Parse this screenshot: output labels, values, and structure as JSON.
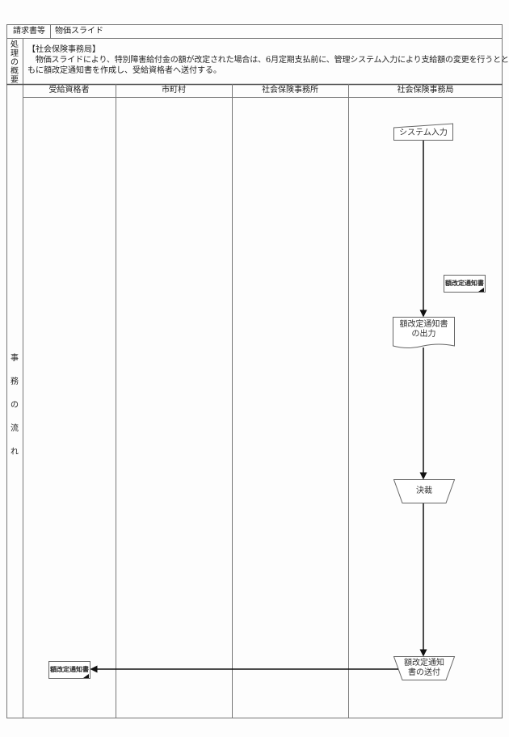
{
  "header": {
    "category_label": "請求書等",
    "category_value": "物価スライド"
  },
  "overview": {
    "label_chars": [
      "処",
      "理",
      "の",
      "概",
      "要"
    ],
    "section": "【社会保険事務局】",
    "line1": "　物価スライドにより、特別障害給付金の額が改定された場合は、6月定期支払前に、管理システム入力により支給額の変更を行うとと",
    "line2": "もに額改定通知書を作成し、受給資格者へ送付する。"
  },
  "flow": {
    "label_chars": [
      "事",
      "務",
      "の",
      "流",
      "れ"
    ],
    "lanes": [
      "受給資格者",
      "市町村",
      "社会保険事務所",
      "社会保険事務局"
    ],
    "nodes": {
      "system_input": "システム入力",
      "notice_output_1": "額改定通知書",
      "notice_output_2": "の出力",
      "approval": "決裁",
      "send_1": "額改定通知",
      "send_2": "書の送付"
    },
    "documents": {
      "notice_bureau": "額改定通知書",
      "notice_recipient": "額改定通知書"
    }
  }
}
